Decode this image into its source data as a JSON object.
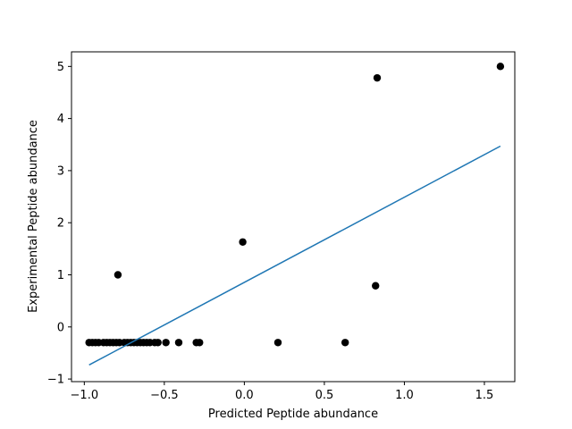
{
  "chart_data": {
    "type": "scatter",
    "title": "",
    "xlabel": "Predicted Peptide abundance",
    "ylabel": "Experimental Peptide abundance",
    "xlim": [
      -1.08,
      1.69
    ],
    "ylim": [
      -1.05,
      5.28
    ],
    "x_ticks": [
      -1.0,
      -0.5,
      0.0,
      0.5,
      1.0,
      1.5
    ],
    "x_tick_labels": [
      "−1.0",
      "−0.5",
      "0.0",
      "0.5",
      "1.0",
      "1.5"
    ],
    "y_ticks": [
      -1,
      0,
      1,
      2,
      3,
      4,
      5
    ],
    "y_tick_labels": [
      "−1",
      "0",
      "1",
      "2",
      "3",
      "4",
      "5"
    ],
    "grid": false,
    "legend": "none",
    "series": [
      {
        "kind": "scatter",
        "color": "#000000",
        "points": [
          {
            "x": -0.97,
            "y": -0.3
          },
          {
            "x": -0.95,
            "y": -0.3
          },
          {
            "x": -0.93,
            "y": -0.3
          },
          {
            "x": -0.91,
            "y": -0.3
          },
          {
            "x": -0.88,
            "y": -0.3
          },
          {
            "x": -0.86,
            "y": -0.3
          },
          {
            "x": -0.84,
            "y": -0.3
          },
          {
            "x": -0.82,
            "y": -0.3
          },
          {
            "x": -0.8,
            "y": -0.3
          },
          {
            "x": -0.78,
            "y": -0.3
          },
          {
            "x": -0.75,
            "y": -0.3
          },
          {
            "x": -0.73,
            "y": -0.3
          },
          {
            "x": -0.71,
            "y": -0.3
          },
          {
            "x": -0.69,
            "y": -0.3
          },
          {
            "x": -0.67,
            "y": -0.3
          },
          {
            "x": -0.65,
            "y": -0.3
          },
          {
            "x": -0.63,
            "y": -0.3
          },
          {
            "x": -0.61,
            "y": -0.3
          },
          {
            "x": -0.59,
            "y": -0.3
          },
          {
            "x": -0.56,
            "y": -0.3
          },
          {
            "x": -0.54,
            "y": -0.3
          },
          {
            "x": -0.49,
            "y": -0.3
          },
          {
            "x": -0.41,
            "y": -0.3
          },
          {
            "x": -0.3,
            "y": -0.3
          },
          {
            "x": -0.28,
            "y": -0.3
          },
          {
            "x": -0.79,
            "y": 1.0
          },
          {
            "x": -0.01,
            "y": 1.63
          },
          {
            "x": 0.21,
            "y": -0.3
          },
          {
            "x": 0.63,
            "y": -0.3
          },
          {
            "x": 0.82,
            "y": 0.79
          },
          {
            "x": 0.83,
            "y": 4.78
          },
          {
            "x": 1.6,
            "y": 5.0
          }
        ]
      },
      {
        "kind": "line",
        "color": "#1f77b4",
        "points": [
          {
            "x": -0.97,
            "y": -0.73
          },
          {
            "x": 1.6,
            "y": 3.47
          }
        ]
      }
    ]
  }
}
